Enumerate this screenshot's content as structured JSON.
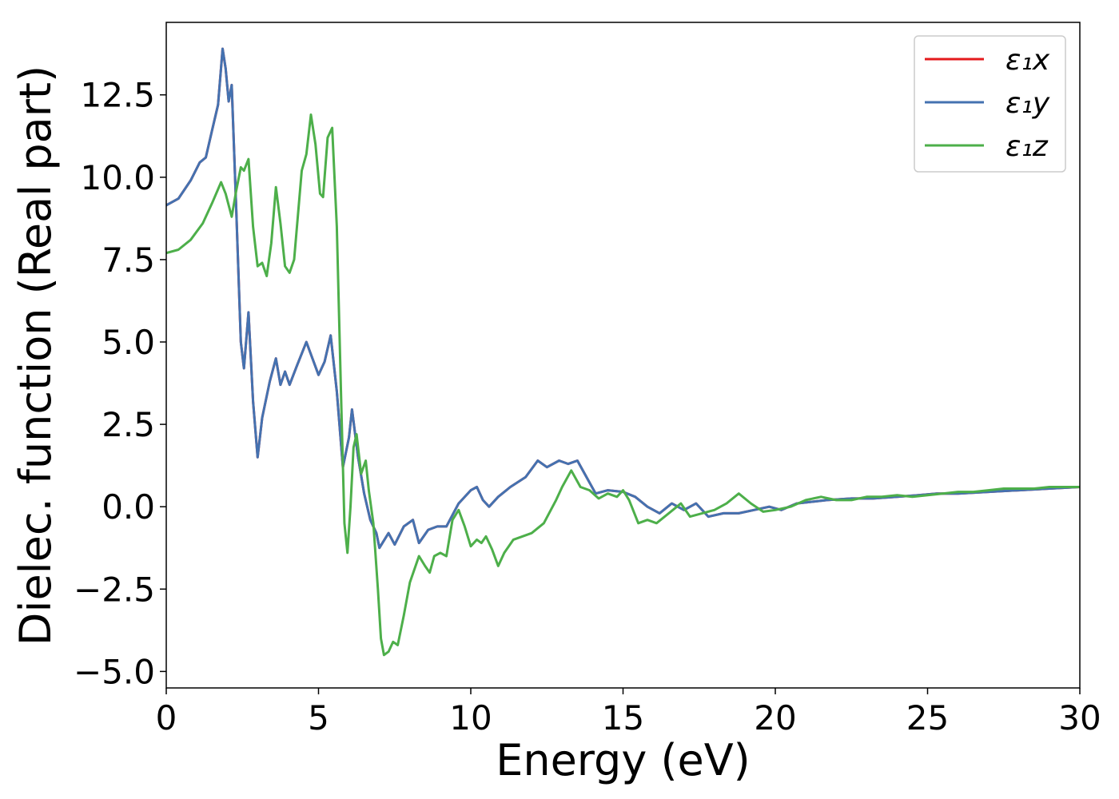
{
  "chart_data": {
    "type": "line",
    "title": "",
    "xlabel": "Energy (eV)",
    "ylabel": "Dielec. function (Real part)",
    "xlim": [
      0,
      30
    ],
    "ylim": [
      -5.5,
      14.7
    ],
    "x_ticks": [
      0,
      5,
      10,
      15,
      20,
      25,
      30
    ],
    "x_tick_labels": [
      "0",
      "5",
      "10",
      "15",
      "20",
      "25",
      "30"
    ],
    "y_ticks": [
      -5.0,
      -2.5,
      0.0,
      2.5,
      5.0,
      7.5,
      10.0,
      12.5
    ],
    "y_tick_labels": [
      "−5.0",
      "−2.5",
      "0.0",
      "2.5",
      "5.0",
      "7.5",
      "10.0",
      "12.5"
    ],
    "grid": false,
    "legend_position": "top-right",
    "series": [
      {
        "name": "ε₁x",
        "color": "#e41a1c",
        "points": [
          [
            0,
            9.15
          ],
          [
            0.4,
            9.35
          ],
          [
            0.8,
            9.9
          ],
          [
            1.1,
            10.45
          ],
          [
            1.3,
            10.6
          ],
          [
            1.5,
            11.4
          ],
          [
            1.7,
            12.2
          ],
          [
            1.85,
            13.9
          ],
          [
            1.95,
            13.3
          ],
          [
            2.05,
            12.3
          ],
          [
            2.15,
            12.8
          ],
          [
            2.3,
            9.0
          ],
          [
            2.45,
            5.0
          ],
          [
            2.55,
            4.2
          ],
          [
            2.7,
            5.9
          ],
          [
            2.85,
            3.2
          ],
          [
            3.0,
            1.5
          ],
          [
            3.15,
            2.7
          ],
          [
            3.4,
            3.8
          ],
          [
            3.6,
            4.5
          ],
          [
            3.75,
            3.7
          ],
          [
            3.9,
            4.1
          ],
          [
            4.05,
            3.7
          ],
          [
            4.3,
            4.3
          ],
          [
            4.6,
            5.0
          ],
          [
            4.8,
            4.5
          ],
          [
            5.0,
            4.0
          ],
          [
            5.2,
            4.4
          ],
          [
            5.4,
            5.2
          ],
          [
            5.6,
            3.5
          ],
          [
            5.8,
            1.2
          ],
          [
            6.0,
            2.1
          ],
          [
            6.1,
            2.95
          ],
          [
            6.3,
            1.5
          ],
          [
            6.5,
            0.4
          ],
          [
            6.7,
            -0.4
          ],
          [
            6.9,
            -0.8
          ],
          [
            7.0,
            -1.25
          ],
          [
            7.3,
            -0.8
          ],
          [
            7.5,
            -1.15
          ],
          [
            7.8,
            -0.6
          ],
          [
            8.1,
            -0.4
          ],
          [
            8.3,
            -1.1
          ],
          [
            8.6,
            -0.7
          ],
          [
            8.9,
            -0.6
          ],
          [
            9.2,
            -0.6
          ],
          [
            9.6,
            0.1
          ],
          [
            10.0,
            0.5
          ],
          [
            10.2,
            0.6
          ],
          [
            10.4,
            0.2
          ],
          [
            10.6,
            0.0
          ],
          [
            10.9,
            0.3
          ],
          [
            11.3,
            0.6
          ],
          [
            11.8,
            0.9
          ],
          [
            12.2,
            1.4
          ],
          [
            12.5,
            1.2
          ],
          [
            12.9,
            1.4
          ],
          [
            13.2,
            1.3
          ],
          [
            13.5,
            1.4
          ],
          [
            13.8,
            0.9
          ],
          [
            14.1,
            0.4
          ],
          [
            14.5,
            0.5
          ],
          [
            15.0,
            0.45
          ],
          [
            15.4,
            0.3
          ],
          [
            15.8,
            0.0
          ],
          [
            16.2,
            -0.2
          ],
          [
            16.6,
            0.1
          ],
          [
            17.0,
            -0.1
          ],
          [
            17.4,
            0.1
          ],
          [
            17.8,
            -0.3
          ],
          [
            18.3,
            -0.2
          ],
          [
            18.8,
            -0.2
          ],
          [
            19.3,
            -0.1
          ],
          [
            19.8,
            0.0
          ],
          [
            20.2,
            -0.1
          ],
          [
            20.7,
            0.1
          ],
          [
            21.2,
            0.15
          ],
          [
            21.7,
            0.2
          ],
          [
            22.5,
            0.25
          ],
          [
            23.2,
            0.25
          ],
          [
            24.0,
            0.3
          ],
          [
            24.7,
            0.35
          ],
          [
            25.3,
            0.4
          ],
          [
            26.0,
            0.4
          ],
          [
            27.0,
            0.45
          ],
          [
            28.0,
            0.5
          ],
          [
            29.0,
            0.55
          ],
          [
            30.0,
            0.6
          ]
        ]
      },
      {
        "name": "ε₁y",
        "color": "#4472b0",
        "points": [
          [
            0,
            9.15
          ],
          [
            0.4,
            9.35
          ],
          [
            0.8,
            9.9
          ],
          [
            1.1,
            10.45
          ],
          [
            1.3,
            10.6
          ],
          [
            1.5,
            11.4
          ],
          [
            1.7,
            12.2
          ],
          [
            1.85,
            13.9
          ],
          [
            1.95,
            13.3
          ],
          [
            2.05,
            12.3
          ],
          [
            2.15,
            12.8
          ],
          [
            2.3,
            9.0
          ],
          [
            2.45,
            5.0
          ],
          [
            2.55,
            4.2
          ],
          [
            2.7,
            5.9
          ],
          [
            2.85,
            3.2
          ],
          [
            3.0,
            1.5
          ],
          [
            3.15,
            2.7
          ],
          [
            3.4,
            3.8
          ],
          [
            3.6,
            4.5
          ],
          [
            3.75,
            3.7
          ],
          [
            3.9,
            4.1
          ],
          [
            4.05,
            3.7
          ],
          [
            4.3,
            4.3
          ],
          [
            4.6,
            5.0
          ],
          [
            4.8,
            4.5
          ],
          [
            5.0,
            4.0
          ],
          [
            5.2,
            4.4
          ],
          [
            5.4,
            5.2
          ],
          [
            5.6,
            3.5
          ],
          [
            5.8,
            1.2
          ],
          [
            6.0,
            2.1
          ],
          [
            6.1,
            2.95
          ],
          [
            6.3,
            1.5
          ],
          [
            6.5,
            0.4
          ],
          [
            6.7,
            -0.4
          ],
          [
            6.9,
            -0.8
          ],
          [
            7.0,
            -1.25
          ],
          [
            7.3,
            -0.8
          ],
          [
            7.5,
            -1.15
          ],
          [
            7.8,
            -0.6
          ],
          [
            8.1,
            -0.4
          ],
          [
            8.3,
            -1.1
          ],
          [
            8.6,
            -0.7
          ],
          [
            8.9,
            -0.6
          ],
          [
            9.2,
            -0.6
          ],
          [
            9.6,
            0.1
          ],
          [
            10.0,
            0.5
          ],
          [
            10.2,
            0.6
          ],
          [
            10.4,
            0.2
          ],
          [
            10.6,
            0.0
          ],
          [
            10.9,
            0.3
          ],
          [
            11.3,
            0.6
          ],
          [
            11.8,
            0.9
          ],
          [
            12.2,
            1.4
          ],
          [
            12.5,
            1.2
          ],
          [
            12.9,
            1.4
          ],
          [
            13.2,
            1.3
          ],
          [
            13.5,
            1.4
          ],
          [
            13.8,
            0.9
          ],
          [
            14.1,
            0.4
          ],
          [
            14.5,
            0.5
          ],
          [
            15.0,
            0.45
          ],
          [
            15.4,
            0.3
          ],
          [
            15.8,
            0.0
          ],
          [
            16.2,
            -0.2
          ],
          [
            16.6,
            0.1
          ],
          [
            17.0,
            -0.1
          ],
          [
            17.4,
            0.1
          ],
          [
            17.8,
            -0.3
          ],
          [
            18.3,
            -0.2
          ],
          [
            18.8,
            -0.2
          ],
          [
            19.3,
            -0.1
          ],
          [
            19.8,
            0.0
          ],
          [
            20.2,
            -0.1
          ],
          [
            20.7,
            0.1
          ],
          [
            21.2,
            0.15
          ],
          [
            21.7,
            0.2
          ],
          [
            22.5,
            0.25
          ],
          [
            23.2,
            0.25
          ],
          [
            24.0,
            0.3
          ],
          [
            24.7,
            0.35
          ],
          [
            25.3,
            0.4
          ],
          [
            26.0,
            0.4
          ],
          [
            27.0,
            0.45
          ],
          [
            28.0,
            0.5
          ],
          [
            29.0,
            0.55
          ],
          [
            30.0,
            0.6
          ]
        ]
      },
      {
        "name": "ε₁z",
        "color": "#4daf4a",
        "points": [
          [
            0,
            7.7
          ],
          [
            0.4,
            7.8
          ],
          [
            0.8,
            8.1
          ],
          [
            1.2,
            8.6
          ],
          [
            1.5,
            9.2
          ],
          [
            1.8,
            9.85
          ],
          [
            1.95,
            9.5
          ],
          [
            2.15,
            8.8
          ],
          [
            2.3,
            9.6
          ],
          [
            2.45,
            10.3
          ],
          [
            2.55,
            10.2
          ],
          [
            2.7,
            10.55
          ],
          [
            2.85,
            8.5
          ],
          [
            3.0,
            7.3
          ],
          [
            3.15,
            7.4
          ],
          [
            3.3,
            7.0
          ],
          [
            3.45,
            8.0
          ],
          [
            3.6,
            9.7
          ],
          [
            3.75,
            8.6
          ],
          [
            3.9,
            7.3
          ],
          [
            4.05,
            7.1
          ],
          [
            4.2,
            7.5
          ],
          [
            4.45,
            10.2
          ],
          [
            4.6,
            10.7
          ],
          [
            4.75,
            11.9
          ],
          [
            4.9,
            11.0
          ],
          [
            5.05,
            9.5
          ],
          [
            5.15,
            9.4
          ],
          [
            5.3,
            11.2
          ],
          [
            5.45,
            11.5
          ],
          [
            5.6,
            8.5
          ],
          [
            5.75,
            3.0
          ],
          [
            5.85,
            -0.5
          ],
          [
            5.95,
            -1.4
          ],
          [
            6.05,
            0.0
          ],
          [
            6.15,
            1.8
          ],
          [
            6.25,
            2.2
          ],
          [
            6.4,
            1.0
          ],
          [
            6.55,
            1.4
          ],
          [
            6.65,
            0.5
          ],
          [
            6.8,
            -0.5
          ],
          [
            6.95,
            -2.5
          ],
          [
            7.05,
            -4.0
          ],
          [
            7.15,
            -4.5
          ],
          [
            7.3,
            -4.4
          ],
          [
            7.45,
            -4.1
          ],
          [
            7.6,
            -4.2
          ],
          [
            7.8,
            -3.3
          ],
          [
            8.0,
            -2.3
          ],
          [
            8.3,
            -1.5
          ],
          [
            8.5,
            -1.8
          ],
          [
            8.65,
            -2.0
          ],
          [
            8.8,
            -1.5
          ],
          [
            9.0,
            -1.4
          ],
          [
            9.2,
            -1.5
          ],
          [
            9.4,
            -0.4
          ],
          [
            9.6,
            -0.1
          ],
          [
            9.8,
            -0.6
          ],
          [
            10.0,
            -1.2
          ],
          [
            10.2,
            -1.0
          ],
          [
            10.35,
            -1.1
          ],
          [
            10.5,
            -0.9
          ],
          [
            10.7,
            -1.3
          ],
          [
            10.9,
            -1.8
          ],
          [
            11.1,
            -1.4
          ],
          [
            11.4,
            -1.0
          ],
          [
            11.7,
            -0.9
          ],
          [
            12.0,
            -0.8
          ],
          [
            12.4,
            -0.5
          ],
          [
            12.8,
            0.2
          ],
          [
            13.0,
            0.6
          ],
          [
            13.3,
            1.1
          ],
          [
            13.6,
            0.6
          ],
          [
            13.9,
            0.5
          ],
          [
            14.2,
            0.25
          ],
          [
            14.5,
            0.4
          ],
          [
            14.8,
            0.3
          ],
          [
            15.0,
            0.5
          ],
          [
            15.2,
            0.2
          ],
          [
            15.5,
            -0.5
          ],
          [
            15.8,
            -0.4
          ],
          [
            16.1,
            -0.5
          ],
          [
            16.5,
            -0.2
          ],
          [
            16.9,
            0.1
          ],
          [
            17.2,
            -0.3
          ],
          [
            17.6,
            -0.2
          ],
          [
            18.0,
            -0.1
          ],
          [
            18.4,
            0.1
          ],
          [
            18.8,
            0.4
          ],
          [
            19.2,
            0.1
          ],
          [
            19.6,
            -0.15
          ],
          [
            20.0,
            -0.1
          ],
          [
            20.5,
            0.0
          ],
          [
            21.0,
            0.2
          ],
          [
            21.5,
            0.3
          ],
          [
            22.0,
            0.2
          ],
          [
            22.5,
            0.2
          ],
          [
            23.0,
            0.3
          ],
          [
            23.5,
            0.3
          ],
          [
            24.0,
            0.35
          ],
          [
            24.5,
            0.3
          ],
          [
            25.0,
            0.35
          ],
          [
            25.5,
            0.4
          ],
          [
            26.0,
            0.45
          ],
          [
            26.5,
            0.45
          ],
          [
            27.0,
            0.5
          ],
          [
            27.5,
            0.55
          ],
          [
            28.0,
            0.55
          ],
          [
            28.5,
            0.55
          ],
          [
            29.0,
            0.6
          ],
          [
            29.5,
            0.6
          ],
          [
            30.0,
            0.6
          ]
        ]
      }
    ]
  }
}
